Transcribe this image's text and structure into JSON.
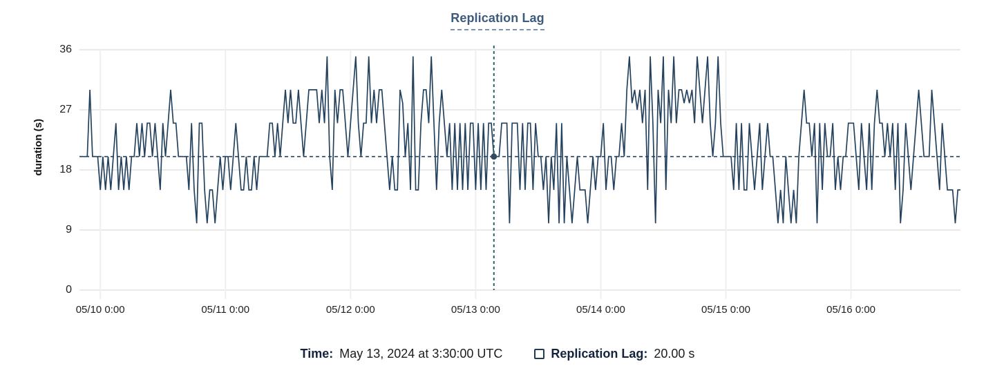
{
  "title": "Replication Lag",
  "colors": {
    "line": "#24425e",
    "reference_line": "#24425e",
    "crosshair": "#2e5f6e",
    "dot": "#32495e",
    "title_text": "#3e5a7c",
    "gridline": "#e9e9e9",
    "axis_text": "#1f1f1f"
  },
  "tooltip": {
    "time_label": "Time:",
    "time_value": "May 13, 2024 at 3:30:00 UTC",
    "series_label": "Replication Lag:",
    "series_value": "20.00 s"
  },
  "chart_data": {
    "type": "line",
    "title": "Replication Lag",
    "xlabel": "",
    "ylabel": "duration (s)",
    "ylim": [
      0,
      36
    ],
    "y_ticks": [
      0,
      9,
      18,
      27,
      36
    ],
    "grid": true,
    "legend_position": "bottom",
    "x_ticks": [
      {
        "index": 8,
        "label": "05/10 0:00"
      },
      {
        "index": 56,
        "label": "05/11 0:00"
      },
      {
        "index": 104,
        "label": "05/12 0:00"
      },
      {
        "index": 152,
        "label": "05/13 0:00"
      },
      {
        "index": 200,
        "label": "05/14 0:00"
      },
      {
        "index": 248,
        "label": "05/15 0:00"
      },
      {
        "index": 296,
        "label": "05/16 0:00"
      }
    ],
    "crosshair": {
      "index": 159,
      "value": 20,
      "time_label": "May 13, 2024 at 3:30:00 UTC",
      "value_label": "20.00 s"
    },
    "series": [
      {
        "name": "Replication Lag",
        "unit": "s",
        "start": "2024-05-09 20:00 UTC",
        "interval_minutes": 30,
        "values": [
          20,
          20,
          20,
          20,
          30,
          20,
          20,
          20,
          15,
          20,
          15,
          20,
          15,
          20,
          25,
          15,
          20,
          15,
          20,
          15,
          20,
          20,
          25,
          20,
          25,
          20,
          25,
          25,
          20,
          25,
          20,
          15,
          25,
          20,
          25,
          30,
          25,
          25,
          20,
          20,
          20,
          20,
          15,
          25,
          15,
          10,
          25,
          25,
          15,
          10,
          15,
          15,
          10,
          15,
          20,
          15,
          20,
          20,
          15,
          20,
          25,
          20,
          15,
          15,
          20,
          15,
          15,
          20,
          15,
          20,
          20,
          20,
          20,
          25,
          25,
          20,
          25,
          20,
          25,
          30,
          25,
          30,
          25,
          25,
          30,
          25,
          20,
          25,
          30,
          30,
          30,
          30,
          25,
          30,
          25,
          35,
          20,
          15,
          30,
          25,
          30,
          30,
          25,
          20,
          25,
          30,
          35,
          25,
          20,
          25,
          25,
          35,
          25,
          30,
          25,
          30,
          30,
          25,
          20,
          15,
          20,
          15,
          15,
          30,
          28,
          20,
          25,
          15,
          35,
          15,
          15,
          25,
          30,
          30,
          25,
          35,
          25,
          15,
          25,
          30,
          25,
          20,
          25,
          15,
          25,
          15,
          25,
          15,
          25,
          15,
          25,
          25,
          15,
          25,
          15,
          25,
          15,
          25,
          25,
          20,
          20,
          20,
          25,
          25,
          25,
          10,
          25,
          25,
          25,
          15,
          25,
          15,
          25,
          25,
          15,
          25,
          20,
          20,
          15,
          20,
          10,
          20,
          15,
          25,
          10,
          25,
          10,
          20,
          15,
          10,
          15,
          20,
          15,
          15,
          15,
          10,
          15,
          20,
          15,
          20,
          20,
          25,
          15,
          20,
          20,
          15,
          20,
          20,
          25,
          20,
          30,
          35,
          28,
          30,
          27,
          30,
          25,
          30,
          15,
          35,
          25,
          10,
          30,
          25,
          35,
          15,
          30,
          25,
          35,
          25,
          30,
          30,
          28,
          30,
          28,
          30,
          25,
          35,
          30,
          25,
          30,
          35,
          25,
          20,
          25,
          35,
          25,
          20,
          20,
          20,
          20,
          15,
          25,
          15,
          25,
          15,
          15,
          25,
          20,
          15,
          20,
          25,
          15,
          20,
          25,
          20,
          20,
          15,
          10,
          15,
          10,
          20,
          15,
          10,
          15,
          10,
          20,
          25,
          30,
          25,
          25,
          20,
          25,
          10,
          25,
          15,
          25,
          20,
          20,
          25,
          15,
          20,
          15,
          20,
          20,
          25,
          25,
          25,
          20,
          15,
          25,
          20,
          15,
          25,
          15,
          25,
          30,
          25,
          25,
          20,
          25,
          20,
          25,
          15,
          25,
          10,
          15,
          25,
          20,
          15,
          20,
          25,
          30,
          25,
          20,
          20,
          20,
          30,
          25,
          20,
          15,
          25,
          20,
          15,
          15,
          15,
          10,
          15,
          15
        ]
      }
    ]
  }
}
